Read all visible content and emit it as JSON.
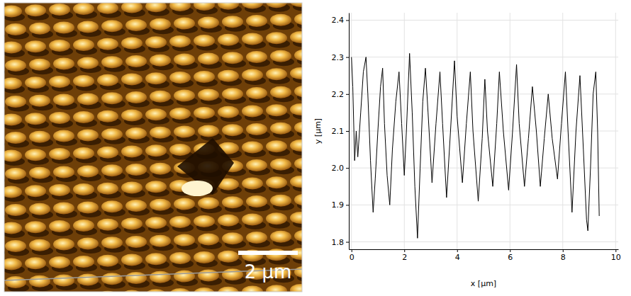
{
  "image": {
    "scale_bar_label": "2 µm"
  },
  "chart_data": {
    "type": "line",
    "x_label": "x [µm]",
    "y_label": "y [µm]",
    "color": "#000000",
    "grid": true,
    "xlim": [
      -0.1,
      10.1
    ],
    "xticks": [
      0,
      2,
      4,
      6,
      8,
      10
    ],
    "ylim": [
      1.78,
      2.42
    ],
    "yticks": [
      1.8,
      1.9,
      {
        "value": 2,
        "label": "2.0"
      },
      2.1,
      2.2,
      2.3,
      2.4
    ],
    "x": [
      0,
      0.05,
      0.12,
      0.18,
      0.24,
      0.35,
      0.45,
      0.55,
      0.62,
      0.72,
      0.82,
      0.9,
      1.0,
      1.1,
      1.18,
      1.25,
      1.35,
      1.45,
      1.55,
      1.68,
      1.8,
      1.9,
      2.0,
      2.08,
      2.2,
      2.3,
      2.4,
      2.5,
      2.6,
      2.7,
      2.8,
      2.9,
      3.05,
      3.2,
      3.35,
      3.45,
      3.6,
      3.75,
      3.9,
      4.0,
      4.2,
      4.35,
      4.5,
      4.6,
      4.8,
      4.95,
      5.05,
      5.15,
      5.35,
      5.5,
      5.6,
      5.75,
      5.95,
      6.1,
      6.25,
      6.35,
      6.55,
      6.7,
      6.85,
      7.0,
      7.15,
      7.3,
      7.45,
      7.6,
      7.8,
      7.95,
      8.1,
      8.2,
      8.35,
      8.5,
      8.65,
      8.78,
      8.9,
      8.95,
      9.05,
      9.15,
      9.25,
      9.32,
      9.38
    ],
    "values": [
      2.3,
      2.22,
      2.02,
      2.1,
      2.03,
      2.15,
      2.26,
      2.3,
      2.2,
      2.02,
      1.88,
      1.97,
      2.1,
      2.22,
      2.27,
      2.12,
      1.98,
      1.9,
      2.05,
      2.18,
      2.26,
      2.12,
      1.98,
      2.1,
      2.31,
      2.15,
      1.95,
      1.81,
      2.0,
      2.18,
      2.27,
      2.15,
      1.96,
      2.12,
      2.26,
      2.12,
      1.92,
      2.1,
      2.29,
      2.14,
      1.96,
      2.12,
      2.26,
      2.1,
      1.91,
      2.08,
      2.24,
      2.1,
      1.95,
      2.12,
      2.26,
      2.1,
      1.94,
      2.1,
      2.28,
      2.12,
      1.95,
      2.08,
      2.22,
      2.1,
      1.95,
      2.08,
      2.2,
      2.08,
      1.97,
      2.12,
      2.26,
      2.1,
      1.88,
      2.1,
      2.25,
      2.05,
      1.86,
      1.83,
      2.0,
      2.2,
      2.26,
      2.1,
      1.87
    ]
  }
}
